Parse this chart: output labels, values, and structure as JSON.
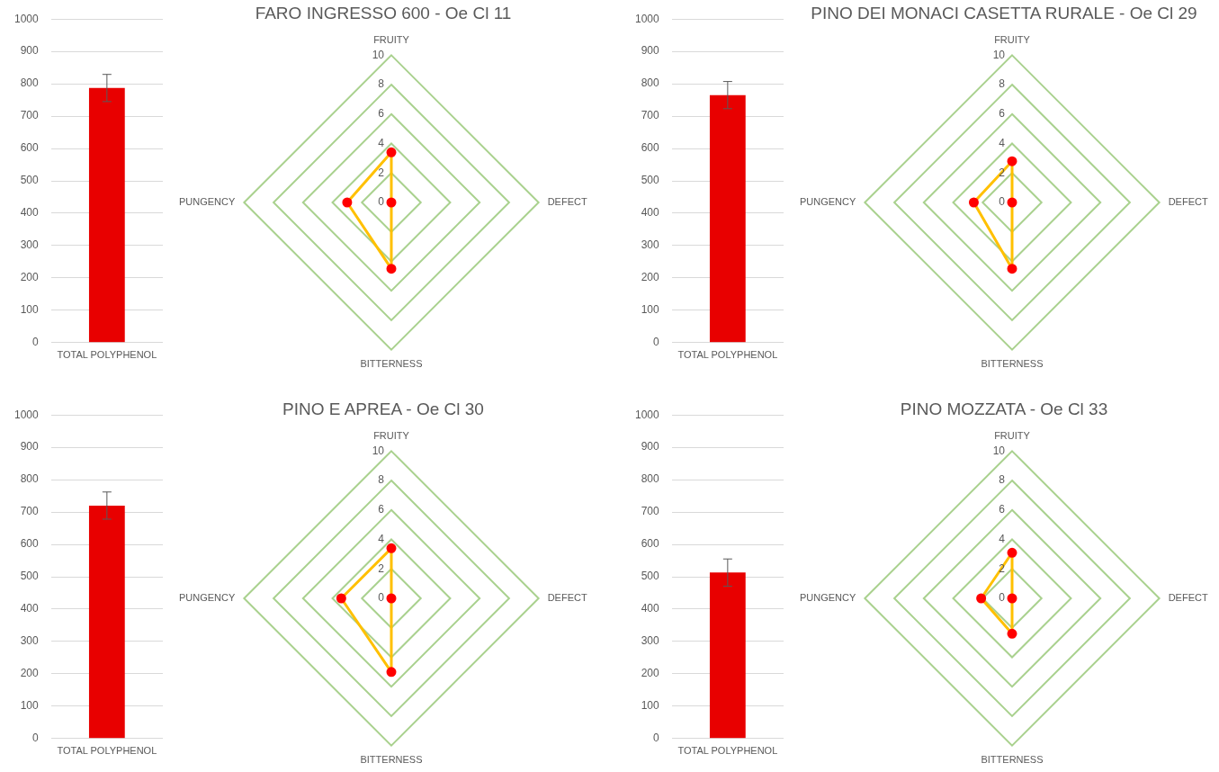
{
  "chart_data": [
    {
      "type": "bar",
      "categories": [
        "TOTAL POLYPHENOL"
      ],
      "values": [
        787
      ],
      "errors": [
        42
      ],
      "color": "#e80000",
      "ylim": [
        0,
        1000
      ],
      "yticks": [
        0,
        100,
        200,
        300,
        400,
        500,
        600,
        700,
        800,
        900,
        1000
      ],
      "grid": "y"
    },
    {
      "type": "radar",
      "title": "FARO INGRESSO 600 - Oe Cl 11",
      "categories": [
        "FRUITY",
        "DEFECT",
        "BITTERNESS",
        "PUNGENCY"
      ],
      "series": [
        {
          "color": "#ffc000",
          "colors": [
            "#ff0000",
            "#ff0000",
            "#ff0000",
            "#ff0000"
          ],
          "values": [
            3.4,
            0,
            4.5,
            3.0
          ]
        }
      ],
      "ylim": [
        0,
        10
      ],
      "yticks": [
        0,
        2,
        4,
        6,
        8,
        10
      ],
      "grid": true,
      "marker": "circle"
    },
    {
      "type": "bar",
      "categories": [
        "TOTAL POLYPHENOL"
      ],
      "values": [
        765
      ],
      "errors": [
        42
      ],
      "color": "#e80000",
      "ylim": [
        0,
        1000
      ],
      "yticks": [
        0,
        100,
        200,
        300,
        400,
        500,
        600,
        700,
        800,
        900,
        1000
      ],
      "grid": "y"
    },
    {
      "type": "radar",
      "title": "PINO DEI MONACI CASETTA RURALE - Oe Cl 29",
      "categories": [
        "FRUITY",
        "DEFECT",
        "BITTERNESS",
        "PUNGENCY"
      ],
      "series": [
        {
          "color": "#ffc000",
          "colors": [
            "#ff0000",
            "#ff0000",
            "#ff0000",
            "#ff0000"
          ],
          "values": [
            2.8,
            0,
            4.5,
            2.6
          ]
        }
      ],
      "ylim": [
        0,
        10
      ],
      "yticks": [
        0,
        2,
        4,
        6,
        8,
        10
      ],
      "grid": true,
      "marker": "circle"
    },
    {
      "type": "bar",
      "categories": [
        "TOTAL POLYPHENOL"
      ],
      "values": [
        720
      ],
      "errors": [
        42
      ],
      "color": "#e80000",
      "ylim": [
        0,
        1000
      ],
      "yticks": [
        0,
        100,
        200,
        300,
        400,
        500,
        600,
        700,
        800,
        900,
        1000
      ],
      "grid": "y"
    },
    {
      "type": "radar",
      "title": "PINO E APREA - Oe Cl 30",
      "categories": [
        "FRUITY",
        "DEFECT",
        "BITTERNESS",
        "PUNGENCY"
      ],
      "series": [
        {
          "color": "#ffc000",
          "colors": [
            "#ff0000",
            "#ff0000",
            "#ff0000",
            "#ff0000"
          ],
          "values": [
            3.4,
            0,
            5.0,
            3.4
          ]
        }
      ],
      "ylim": [
        0,
        10
      ],
      "yticks": [
        0,
        2,
        4,
        6,
        8,
        10
      ],
      "grid": true,
      "marker": "circle"
    },
    {
      "type": "bar",
      "categories": [
        "TOTAL POLYPHENOL"
      ],
      "values": [
        513
      ],
      "errors": [
        42
      ],
      "color": "#e80000",
      "ylim": [
        0,
        1000
      ],
      "yticks": [
        0,
        100,
        200,
        300,
        400,
        500,
        600,
        700,
        800,
        900,
        1000
      ],
      "grid": "y"
    },
    {
      "type": "radar",
      "title": "PINO MOZZATA - Oe Cl 33",
      "categories": [
        "FRUITY",
        "DEFECT",
        "BITTERNESS",
        "PUNGENCY"
      ],
      "series": [
        {
          "color": "#ffc000",
          "colors": [
            "#ff0000",
            "#ff0000",
            "#ff0000",
            "#ff0000"
          ],
          "values": [
            3.1,
            0,
            2.4,
            2.1
          ]
        }
      ],
      "ylim": [
        0,
        10
      ],
      "yticks": [
        0,
        2,
        4,
        6,
        8,
        10
      ],
      "grid": true,
      "marker": "circle"
    }
  ]
}
